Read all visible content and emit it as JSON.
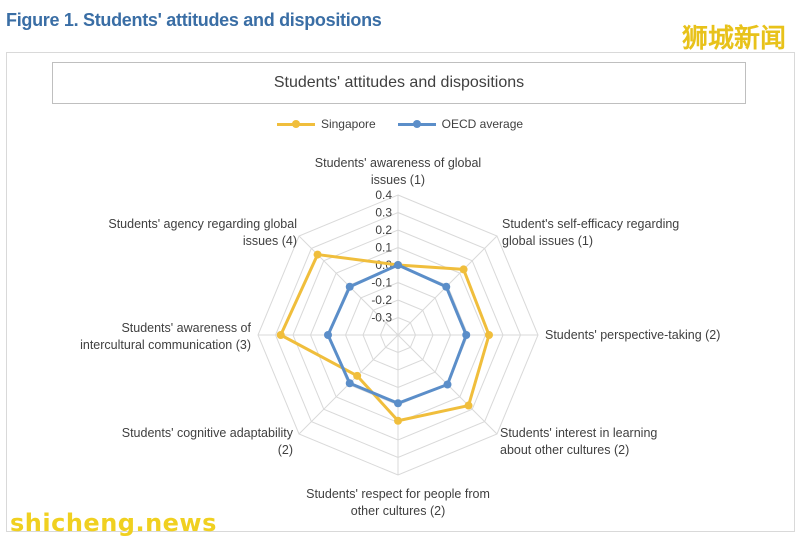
{
  "figure_title": "Figure 1. Students' attitudes and dispositions",
  "watermark_cn": "狮城新闻",
  "watermark_en": "shicheng.news",
  "colors": {
    "singapore": "#f0be3c",
    "oecd": "#5b8ec9",
    "grid": "#d9d9d9",
    "axis_text": "#404040"
  },
  "chart_data": {
    "type": "radar",
    "title": "Students' attitudes and dispositions",
    "axes": [
      "Students' awareness of global issues (1)",
      "Student's self-efficacy regarding global issues (1)",
      "Students' perspective-taking (2)",
      "Students' interest in learning about other cultures (2)",
      "Students' respect for people from other cultures (2)",
      "Students' cognitive adaptability (2)",
      "Students' awareness of intercultural communication (3)",
      "Students' agency regarding global issues (4)"
    ],
    "axis_label_lines": [
      [
        "Students' awareness of global",
        "issues (1)"
      ],
      [
        "Student's self-efficacy regarding",
        "global issues (1)"
      ],
      [
        "Students' perspective-taking (2)"
      ],
      [
        "Students' interest in learning",
        "about other cultures (2)"
      ],
      [
        "Students' respect for people from",
        "other cultures (2)"
      ],
      [
        "Students' cognitive adaptability",
        "(2)"
      ],
      [
        "Students' awareness of",
        "intercultural communication (3)"
      ],
      [
        "Students' agency regarding global",
        "issues (4)"
      ]
    ],
    "rlim": [
      -0.4,
      0.4
    ],
    "ticks": [
      -0.3,
      -0.2,
      -0.1,
      0.0,
      0.1,
      0.2,
      0.3,
      0.4
    ],
    "tick_labels": [
      "-0.3",
      "-0.2",
      "-0.1",
      "0.0",
      "0.1",
      "0.2",
      "0.3",
      "0.4"
    ],
    "series": [
      {
        "name": "Singapore",
        "values": [
          0.0,
          0.13,
          0.12,
          0.17,
          0.09,
          -0.07,
          0.27,
          0.25
        ]
      },
      {
        "name": "OECD average",
        "values": [
          0.0,
          -0.01,
          -0.01,
          0.0,
          -0.01,
          -0.01,
          0.0,
          -0.01
        ]
      }
    ],
    "legend_position": "top-center",
    "grid": true
  }
}
